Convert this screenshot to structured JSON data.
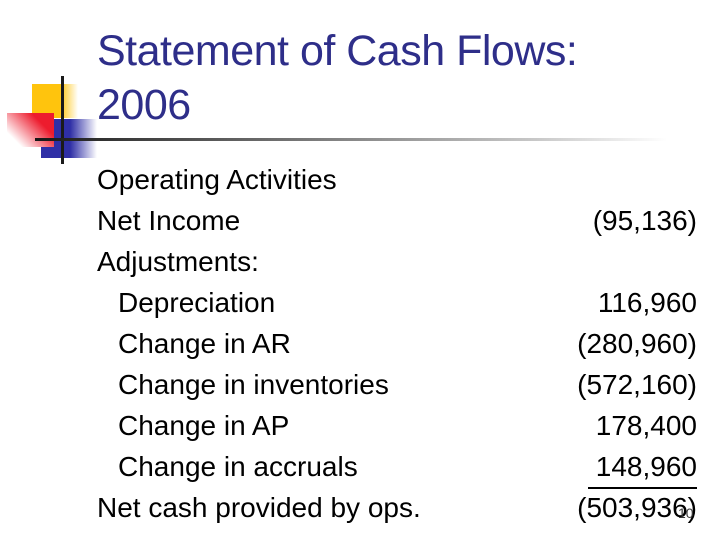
{
  "colors": {
    "title_text": "#2e2e89",
    "body_text": "#000000",
    "square_yellow": "#ffc40d",
    "square_red": "#ed1c2e",
    "square_blue": "#2f2fa6",
    "line_black": "#1a1a1a",
    "page_num": "#3a3a3a"
  },
  "title": {
    "line1": "Statement of Cash Flows:",
    "line2": "2006"
  },
  "statement": {
    "rows": [
      {
        "label": "Operating Activities",
        "value": "",
        "indent": false,
        "underline": false
      },
      {
        "label": "Net Income",
        "value": "(95,136)",
        "indent": false,
        "underline": false
      },
      {
        "label": "Adjustments:",
        "value": "",
        "indent": false,
        "underline": false
      },
      {
        "label": "Depreciation",
        "value": "116,960",
        "indent": true,
        "underline": false
      },
      {
        "label": "Change in AR",
        "value": "(280,960)",
        "indent": true,
        "underline": false
      },
      {
        "label": "Change in inventories",
        "value": "(572,160)",
        "indent": true,
        "underline": false
      },
      {
        "label": "Change in AP",
        "value": "178,400",
        "indent": true,
        "underline": false
      },
      {
        "label": "Change in accruals",
        "value": "148,960",
        "indent": true,
        "underline": true
      },
      {
        "label": "Net cash provided by ops.",
        "value": "(503,936)",
        "indent": false,
        "underline": false
      }
    ]
  },
  "page_number": "10"
}
